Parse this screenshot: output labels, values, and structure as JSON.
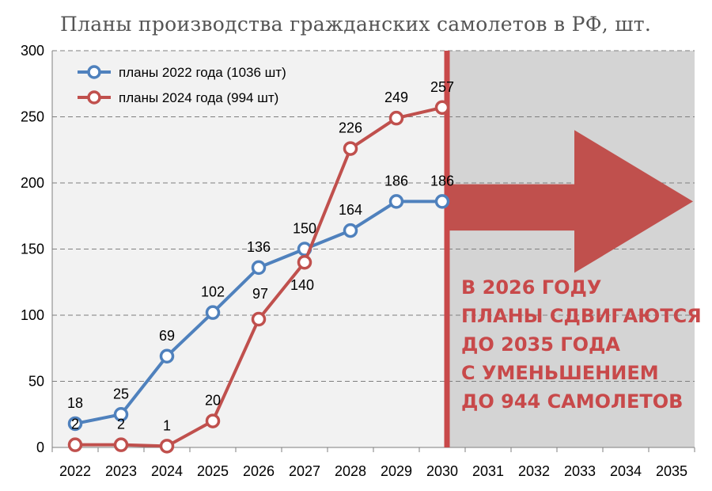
{
  "chart_data": {
    "type": "line",
    "title": "Планы производства гражданских самолетов в РФ, шт.",
    "categories": [
      "2022",
      "2023",
      "2024",
      "2025",
      "2026",
      "2027",
      "2028",
      "2029",
      "2030",
      "2031",
      "2032",
      "2033",
      "2034",
      "2035"
    ],
    "ylim": [
      0,
      300
    ],
    "yticks": [
      0,
      50,
      100,
      150,
      200,
      250,
      300
    ],
    "grid": true,
    "legend_position": "top-left",
    "series": [
      {
        "name": "планы 2022 года (1036 шт)",
        "color": "#4f81bd",
        "x": [
          "2022",
          "2023",
          "2024",
          "2025",
          "2026",
          "2027",
          "2028",
          "2029",
          "2030"
        ],
        "values": [
          18,
          25,
          69,
          102,
          136,
          150,
          164,
          186,
          186
        ],
        "labels": [
          "18",
          "25",
          "69",
          "102",
          "136",
          "150",
          "164",
          "186",
          "186"
        ]
      },
      {
        "name": "планы 2024 года (994 шт)",
        "color": "#c0504d",
        "x": [
          "2022",
          "2023",
          "2024",
          "2025",
          "2026",
          "2027",
          "2028",
          "2029",
          "2030"
        ],
        "values": [
          2,
          2,
          1,
          20,
          97,
          140,
          226,
          249,
          257
        ],
        "labels": [
          "2",
          "2",
          "1",
          "20",
          "97",
          "140",
          "226",
          "249",
          "257"
        ]
      }
    ],
    "annotation": {
      "from_category": "2030",
      "shaded_region_color": "#d4d4d4",
      "marker_line_color": "#c8494a",
      "arrow_color": "#c0504d",
      "text_lines": [
        "В 2026 ГОДУ",
        "ПЛАНЫ СДВИГАЮТСЯ",
        "ДО 2035 ГОДА",
        "С УМЕНЬШЕНИЕМ",
        "ДО 944 САМОЛЕТОВ"
      ]
    }
  }
}
